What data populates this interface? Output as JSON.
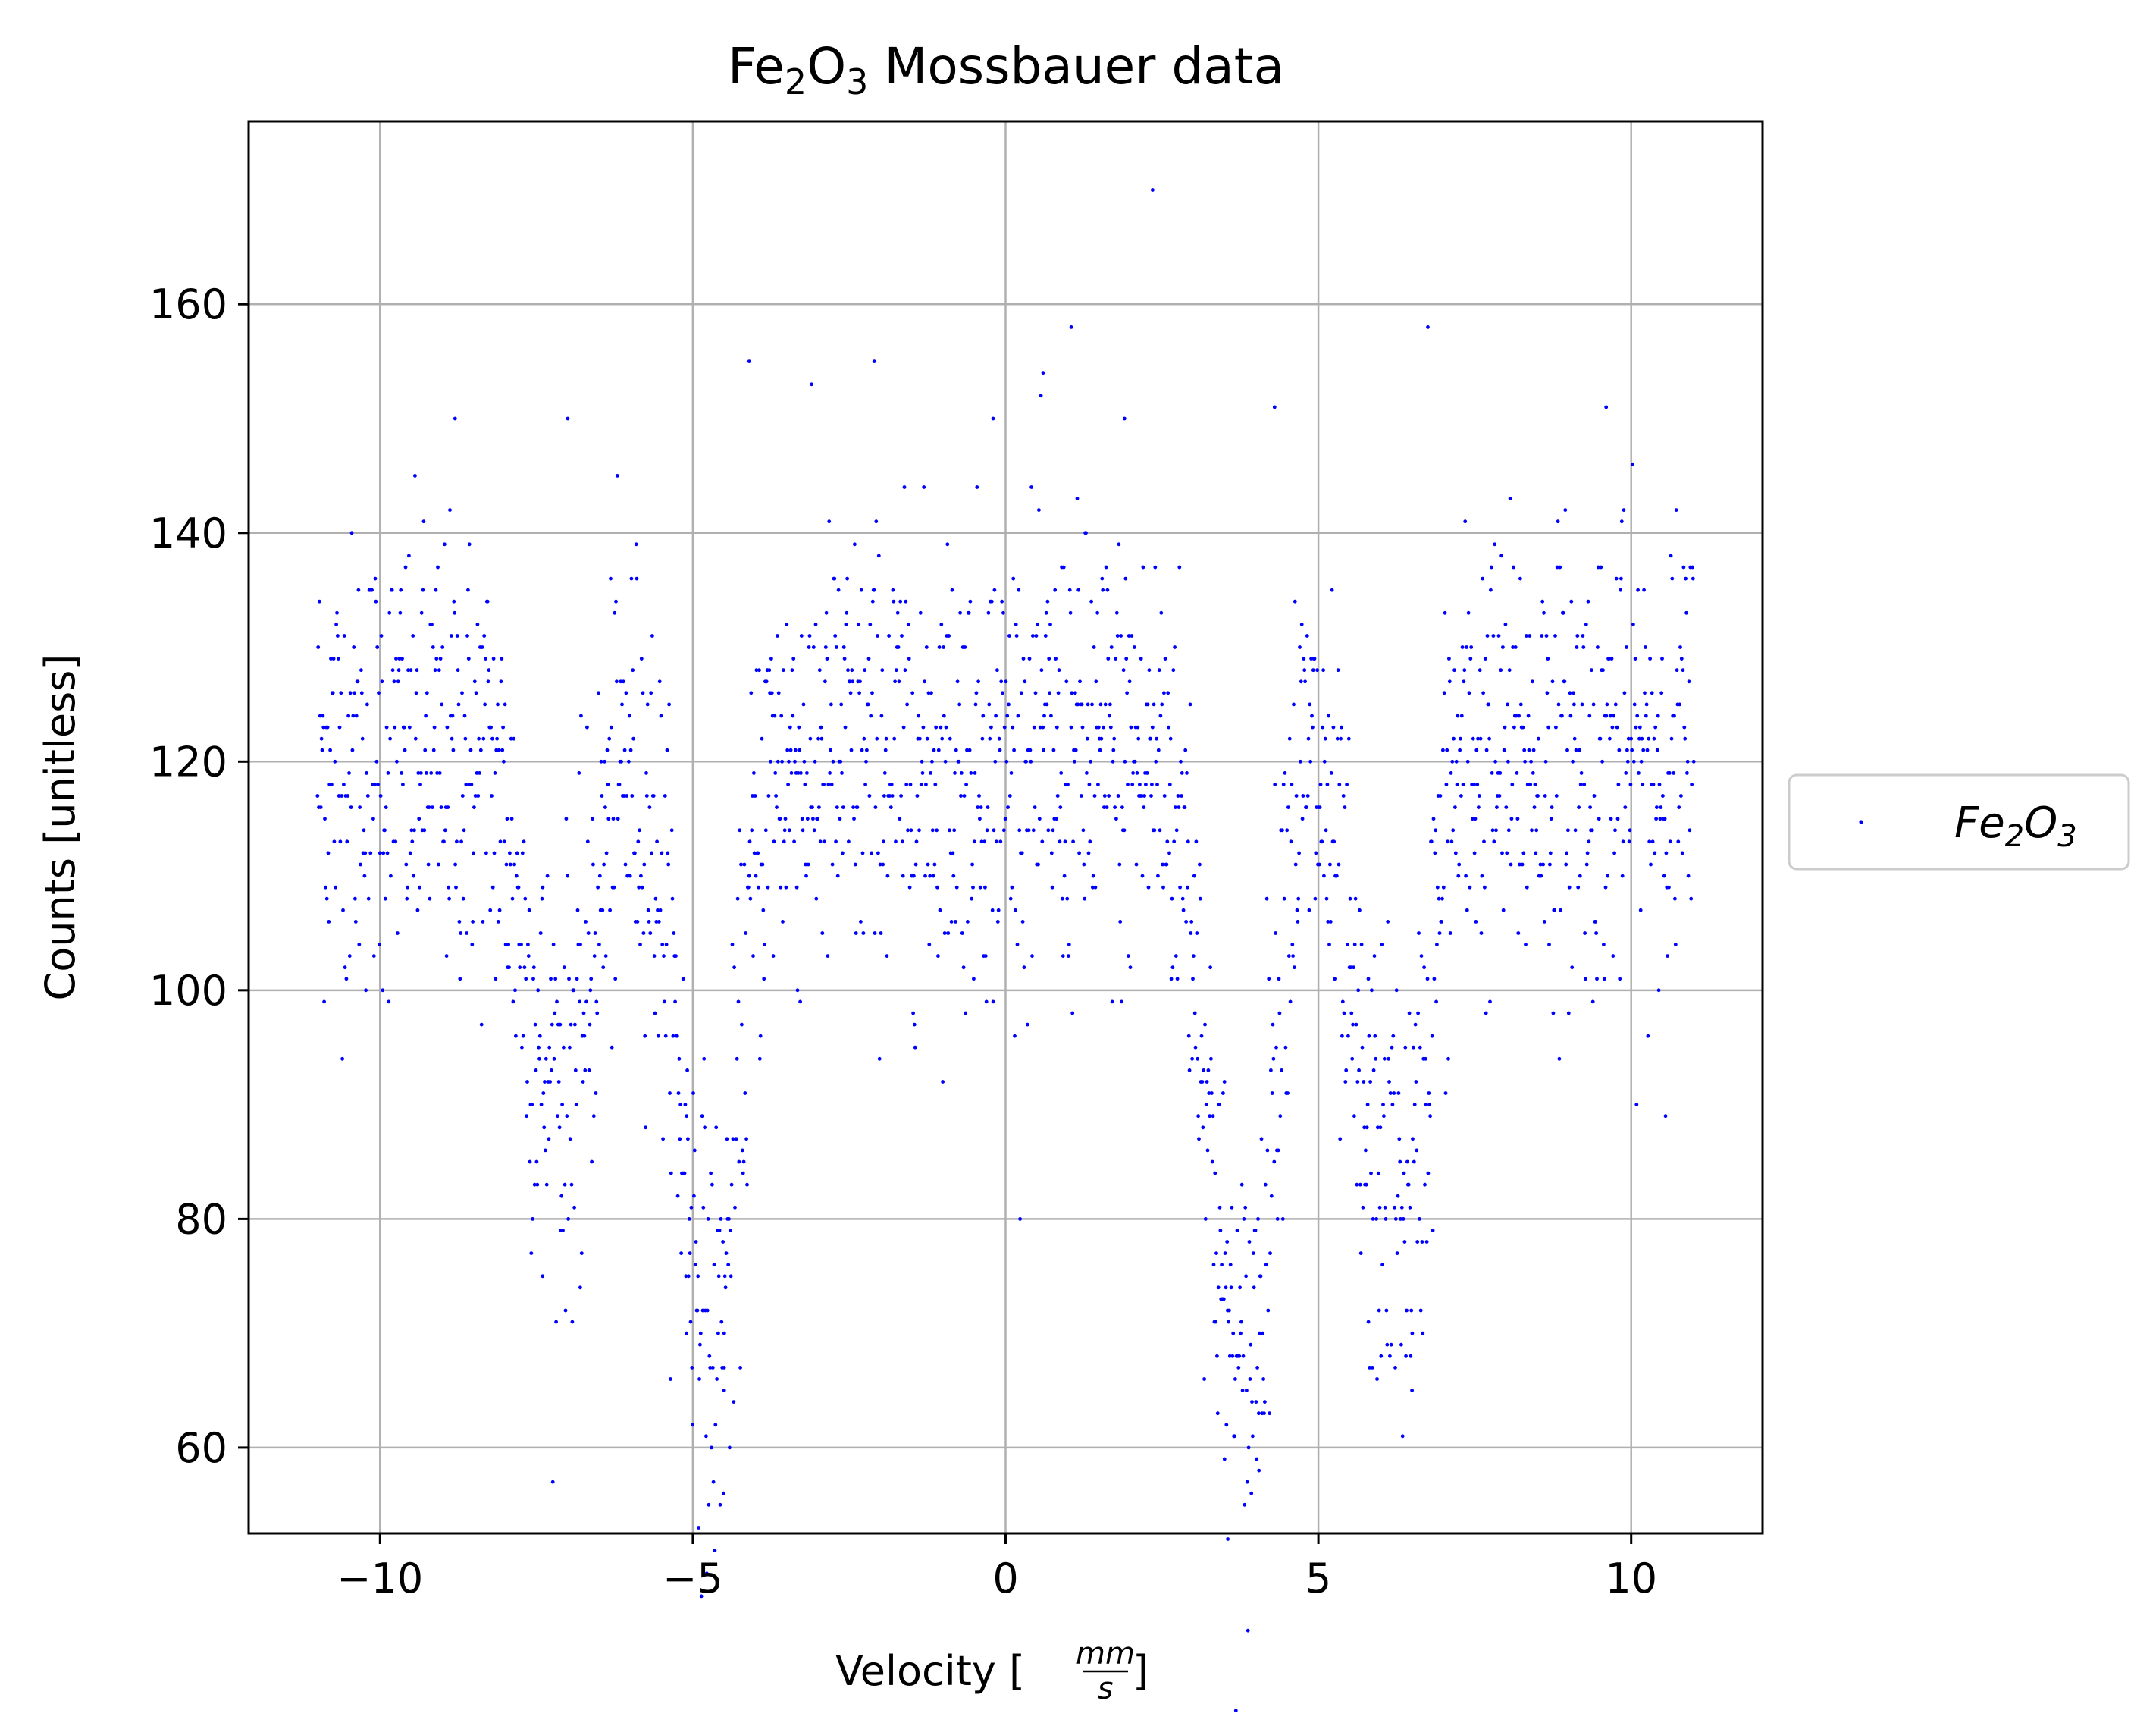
{
  "chart_data": {
    "type": "scatter",
    "title": "Fe₂O₃ Mossbauer data",
    "xlabel": "Velocity [mm/s]",
    "ylabel": "Counts [unitless]",
    "xlim": [
      -12.1,
      12.1
    ],
    "ylim": [
      52.5,
      176
    ],
    "x_ticks": [
      -10,
      -5,
      0,
      5,
      10
    ],
    "x_tick_labels": [
      "−10",
      "−5",
      "0",
      "5",
      "10"
    ],
    "y_ticks": [
      60,
      80,
      100,
      120,
      140,
      160
    ],
    "y_tick_labels": [
      "60",
      "80",
      "100",
      "120",
      "140",
      "160"
    ],
    "grid": true,
    "legend": {
      "placement": "outside-right",
      "entries": [
        {
          "label": "Fe₂O₃",
          "color": "#0000ff",
          "marker": "dot"
        }
      ]
    },
    "series": [
      {
        "name": "Fe₂O₃",
        "color": "#0000ff",
        "marker": "dot",
        "x_range": [
          -11,
          11
        ],
        "n_points": 2048,
        "note": "dense scatter around ~120 counts with absorption dips",
        "baseline": 120,
        "spread": 10,
        "dips": [
          {
            "x": -7.4,
            "depth": 24,
            "width": 0.35
          },
          {
            "x": -6.8,
            "depth": 18,
            "width": 0.3
          },
          {
            "x": -5.0,
            "depth": 32,
            "width": 0.35
          },
          {
            "x": -4.5,
            "depth": 36,
            "width": 0.3
          },
          {
            "x": 3.5,
            "depth": 38,
            "width": 0.35
          },
          {
            "x": 4.0,
            "depth": 36,
            "width": 0.3
          },
          {
            "x": 5.8,
            "depth": 32,
            "width": 0.35
          },
          {
            "x": 6.5,
            "depth": 34,
            "width": 0.3
          }
        ],
        "outliers": [
          {
            "x": 2.35,
            "y": 170
          },
          {
            "x": 1.05,
            "y": 158
          },
          {
            "x": 6.75,
            "y": 158
          },
          {
            "x": -4.1,
            "y": 155
          },
          {
            "x": -2.1,
            "y": 155
          },
          {
            "x": 0.6,
            "y": 154
          },
          {
            "x": 4.3,
            "y": 151
          },
          {
            "x": 9.6,
            "y": 151
          },
          {
            "x": -8.8,
            "y": 150
          },
          {
            "x": -7.0,
            "y": 150
          },
          {
            "x": -0.2,
            "y": 150
          },
          {
            "x": 1.9,
            "y": 150
          },
          {
            "x": 3.5,
            "y": 59
          },
          {
            "x": 4.05,
            "y": 58
          },
          {
            "x": -4.5,
            "y": 65
          },
          {
            "x": -4.5,
            "y": 67
          },
          {
            "x": -5.1,
            "y": 70
          },
          {
            "x": 5.8,
            "y": 71
          },
          {
            "x": 6.5,
            "y": 70
          },
          {
            "x": 3.55,
            "y": 72
          },
          {
            "x": -6.8,
            "y": 74
          },
          {
            "x": -7.4,
            "y": 75
          }
        ]
      }
    ]
  }
}
